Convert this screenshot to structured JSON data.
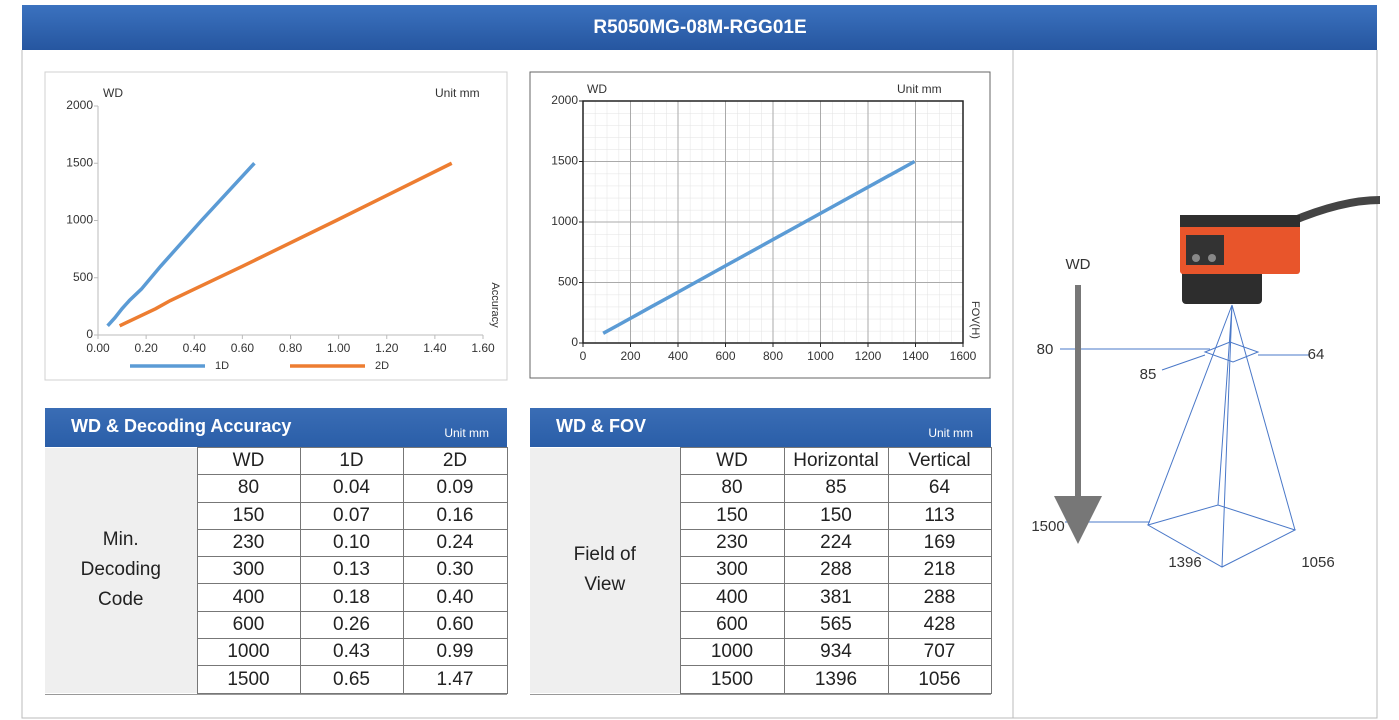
{
  "header": {
    "title": "R5050MG-08M-RGG01E"
  },
  "chart_data": [
    {
      "type": "line",
      "y_label": "WD",
      "unit_label": "Unit mm",
      "x_label": "Accuracy",
      "xlim": [
        0,
        1.6
      ],
      "xticks": [
        {
          "value": 0,
          "label": "0.00"
        },
        {
          "value": 0.2,
          "label": "0.20"
        },
        {
          "value": 0.4,
          "label": "0.40"
        },
        {
          "value": 0.6,
          "label": "0.60"
        },
        {
          "value": 0.8,
          "label": "0.80"
        },
        {
          "value": 1,
          "label": "1.00"
        },
        {
          "value": 1.2,
          "label": "1.20"
        },
        {
          "value": 1.4,
          "label": "1.40"
        },
        {
          "value": 1.6,
          "label": "1.60"
        }
      ],
      "ylim": [
        0,
        2000
      ],
      "yticks": [
        0,
        500,
        1000,
        1500,
        2000
      ],
      "grid": false,
      "legend": "bottom",
      "series": [
        {
          "name": "1D",
          "color": "#5b9bd5",
          "x": [
            0.04,
            0.07,
            0.1,
            0.13,
            0.18,
            0.26,
            0.43,
            0.65
          ],
          "values": [
            80,
            150,
            230,
            300,
            400,
            600,
            1000,
            1500
          ]
        },
        {
          "name": "2D",
          "color": "#ed7d31",
          "x": [
            0.09,
            0.16,
            0.24,
            0.3,
            0.4,
            0.6,
            0.99,
            1.47
          ],
          "values": [
            80,
            150,
            230,
            300,
            400,
            600,
            1000,
            1500
          ]
        }
      ]
    },
    {
      "type": "line",
      "y_label": "WD",
      "unit_label": "Unit mm",
      "x_label": "FOV(H)",
      "xlim": [
        0,
        1600
      ],
      "xticks": [
        0,
        200,
        400,
        600,
        800,
        1000,
        1200,
        1400,
        1600
      ],
      "ylim": [
        0,
        2000
      ],
      "yticks": [
        0,
        500,
        1000,
        1500,
        2000
      ],
      "grid": true,
      "series": [
        {
          "color": "#5b9bd5",
          "x": [
            85,
            150,
            224,
            288,
            381,
            565,
            934,
            1396
          ],
          "values": [
            80,
            150,
            230,
            300,
            400,
            600,
            1000,
            1500
          ]
        }
      ]
    }
  ],
  "table_accuracy": {
    "title": "WD & Decoding Accuracy",
    "unit": "Unit mm",
    "row_label": "Min. Decoding Code",
    "columns": [
      "WD",
      "1D",
      "2D"
    ],
    "rows": [
      [
        "80",
        "0.04",
        "0.09"
      ],
      [
        "150",
        "0.07",
        "0.16"
      ],
      [
        "230",
        "0.10",
        "0.24"
      ],
      [
        "300",
        "0.13",
        "0.30"
      ],
      [
        "400",
        "0.18",
        "0.40"
      ],
      [
        "600",
        "0.26",
        "0.60"
      ],
      [
        "1000",
        "0.43",
        "0.99"
      ],
      [
        "1500",
        "0.65",
        "1.47"
      ]
    ]
  },
  "table_fov": {
    "title": "WD & FOV",
    "unit": "Unit mm",
    "row_label": "Field of View",
    "columns": [
      "WD",
      "Horizontal",
      "Vertical"
    ],
    "rows": [
      [
        "80",
        "85",
        "64"
      ],
      [
        "150",
        "150",
        "113"
      ],
      [
        "230",
        "224",
        "169"
      ],
      [
        "300",
        "288",
        "218"
      ],
      [
        "400",
        "381",
        "288"
      ],
      [
        "600",
        "565",
        "428"
      ],
      [
        "1000",
        "934",
        "707"
      ],
      [
        "1500",
        "1396",
        "1056"
      ]
    ]
  },
  "diagram": {
    "wd_label": "WD",
    "near_wd": "80",
    "far_wd": "1500",
    "near_h": "85",
    "near_v": "64",
    "far_h": "1396",
    "far_v": "1056"
  }
}
